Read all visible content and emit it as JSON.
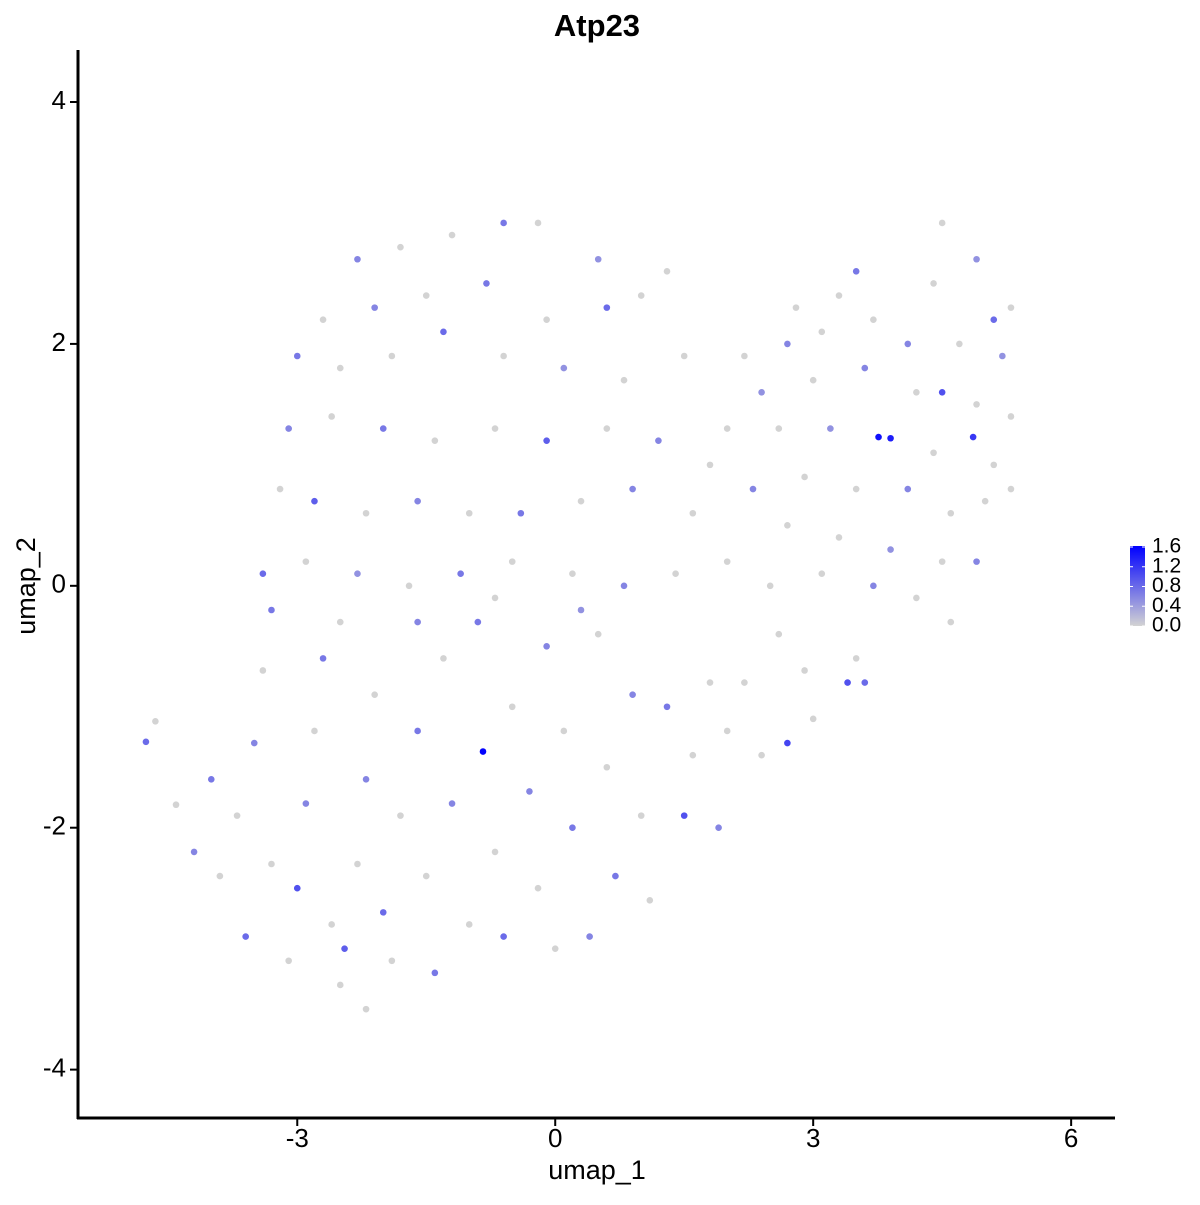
{
  "chart_data": {
    "type": "scatter",
    "title": "Atp23",
    "x_label": "umap_1",
    "y_label": "umap_2",
    "x": [
      -2.3,
      -1.8,
      -1.2,
      -0.6,
      -0.2,
      0.5,
      1.0,
      -2.7,
      -2.1,
      -1.5,
      -0.8,
      -0.1,
      0.6,
      1.3,
      -3.0,
      -2.5,
      -1.9,
      -1.3,
      -0.6,
      0.1,
      0.8,
      1.5,
      -3.1,
      -2.6,
      -2.0,
      -1.4,
      -0.7,
      -0.1,
      0.6,
      1.2,
      1.8,
      -3.2,
      -2.8,
      -2.2,
      -1.6,
      -1.0,
      -0.4,
      0.3,
      0.9,
      1.6,
      -3.4,
      -2.9,
      -2.3,
      -1.7,
      -1.1,
      -0.5,
      0.2,
      0.8,
      1.4,
      2.0,
      4.5,
      4.9,
      4.4,
      3.5,
      3.3,
      5.3,
      5.1,
      2.8,
      2.7,
      3.1,
      3.7,
      4.1,
      4.7,
      5.2,
      2.2,
      2.4,
      3.0,
      3.6,
      4.2,
      4.5,
      4.9,
      5.3,
      2.0,
      2.6,
      3.2,
      3.76,
      3.9,
      4.86,
      4.4,
      5.1,
      2.3,
      2.9,
      3.5,
      4.1,
      4.6,
      5.0,
      2.7,
      3.3,
      3.9,
      4.5,
      4.9,
      5.3,
      2.5,
      3.1,
      3.7,
      4.2,
      4.6,
      3.5,
      2.9,
      3.4,
      3.6,
      3.0,
      2.7,
      2.4,
      2.0,
      2.2,
      2.6,
      -4.76,
      -4.65,
      -4.41,
      -4.2,
      -4.0,
      -3.9,
      -3.6,
      -3.7,
      -3.5,
      -3.4,
      -3.3,
      -3.1,
      -3.0,
      -2.9,
      -2.8,
      -2.7,
      -2.6,
      -2.5,
      -2.45,
      -2.3,
      -2.2,
      -2.1,
      -2.2,
      -2.0,
      -1.9,
      -1.8,
      -1.6,
      -1.5,
      -1.4,
      -1.3,
      -1.2,
      -1.0,
      -0.9,
      -0.84,
      -0.7,
      -0.6,
      -0.5,
      -0.3,
      -0.2,
      -0.1,
      0.0,
      0.1,
      0.2,
      0.4,
      0.5,
      0.6,
      0.7,
      0.9,
      1.0,
      1.1,
      1.3,
      1.5,
      1.6,
      1.8,
      1.9,
      0.3,
      -0.7,
      -1.6,
      -2.5,
      -3.3
    ],
    "values": [
      2.7,
      2.8,
      2.9,
      3.0,
      3.0,
      2.7,
      2.4,
      2.2,
      2.3,
      2.4,
      2.5,
      2.2,
      2.3,
      2.6,
      1.9,
      1.8,
      1.9,
      2.1,
      1.9,
      1.8,
      1.7,
      1.9,
      1.3,
      1.4,
      1.3,
      1.2,
      1.3,
      1.2,
      1.3,
      1.2,
      1.0,
      0.8,
      0.7,
      0.6,
      0.7,
      0.6,
      0.6,
      0.7,
      0.8,
      0.6,
      0.1,
      0.2,
      0.1,
      0.0,
      0.1,
      0.2,
      0.1,
      0.0,
      0.1,
      0.2,
      3.0,
      2.7,
      2.5,
      2.6,
      2.4,
      2.3,
      2.2,
      2.3,
      2.0,
      2.1,
      2.2,
      2.0,
      2.0,
      1.9,
      1.9,
      1.6,
      1.7,
      1.8,
      1.6,
      1.6,
      1.5,
      1.4,
      1.3,
      1.3,
      1.3,
      1.23,
      1.22,
      1.23,
      1.1,
      1.0,
      0.8,
      0.9,
      0.8,
      0.8,
      0.6,
      0.7,
      0.5,
      0.4,
      0.3,
      0.2,
      0.2,
      0.8,
      0.0,
      0.1,
      0.0,
      -0.1,
      -0.3,
      -0.6,
      -0.7,
      -0.8,
      -0.8,
      -1.1,
      -1.3,
      -1.4,
      -1.2,
      -0.8,
      -0.4,
      -1.29,
      -1.12,
      -1.81,
      -2.2,
      -1.6,
      -2.4,
      -2.9,
      -1.9,
      -1.3,
      -0.7,
      -2.3,
      -3.1,
      -2.5,
      -1.8,
      -1.2,
      -0.6,
      -2.8,
      -3.3,
      -3.0,
      -2.3,
      -1.6,
      -0.9,
      -3.5,
      -2.7,
      -3.1,
      -1.9,
      -1.2,
      -2.4,
      -3.2,
      -0.6,
      -1.8,
      -2.8,
      -0.3,
      -1.37,
      -2.2,
      -2.9,
      -1.0,
      -1.7,
      -2.5,
      -0.5,
      -3.0,
      -1.2,
      -2.0,
      -2.9,
      -0.4,
      -1.5,
      -2.4,
      -0.9,
      -1.9,
      -2.6,
      -1.0,
      -1.9,
      -1.4,
      -0.8,
      -2.0,
      -0.2,
      -0.1,
      -0.3,
      -0.3,
      -0.2
    ],
    "expression": [
      0.6,
      0,
      0,
      0.7,
      0,
      0.5,
      0,
      0,
      0.6,
      0,
      0.7,
      0,
      0.8,
      0,
      0.7,
      0,
      0,
      0.8,
      0,
      0.5,
      0,
      0,
      0.6,
      0,
      0.7,
      0,
      0,
      0.9,
      0,
      0.6,
      0,
      0,
      0.9,
      0,
      0.6,
      0,
      0.7,
      0,
      0.6,
      0,
      0.8,
      0,
      0.5,
      0,
      0.7,
      0,
      0,
      0.6,
      0,
      0,
      0,
      0.5,
      0,
      0.7,
      0,
      0,
      0.8,
      0,
      0.6,
      0,
      0,
      0.6,
      0,
      0.5,
      0,
      0.5,
      0,
      0.6,
      0,
      1.0,
      0,
      0,
      0,
      0,
      0.5,
      1.5,
      1.4,
      1.2,
      0,
      0,
      0.6,
      0,
      0,
      0.6,
      0,
      0,
      0,
      0,
      0.5,
      0,
      0.6,
      0,
      0,
      0,
      0.6,
      0,
      0,
      0,
      0,
      1.0,
      0.8,
      0,
      1.1,
      0,
      0,
      0,
      0,
      0.8,
      0,
      0,
      0.6,
      0.7,
      0,
      0.8,
      0,
      0.6,
      0,
      0,
      0,
      1.0,
      0.6,
      0,
      0.7,
      0,
      0,
      0.9,
      0,
      0.6,
      0,
      0,
      0.8,
      0,
      0,
      0.7,
      0,
      0.7,
      0,
      0.6,
      0,
      0.7,
      1.6,
      0,
      0.8,
      0,
      0.6,
      0,
      0.6,
      0,
      0,
      0.7,
      0.6,
      0,
      0,
      0.7,
      0.6,
      0,
      0,
      0.7,
      1.0,
      0,
      0,
      0.6,
      0.5,
      0,
      0.6,
      0,
      0.7
    ],
    "xlim": [
      -5.55,
      6.51
    ],
    "ylim": [
      -4.4,
      4.43
    ],
    "xticks": [
      -3,
      0,
      3,
      6
    ],
    "yticks": [
      -4,
      -2,
      0,
      2,
      4
    ],
    "colorbar": {
      "low_color": "#d3d3d3",
      "high_color": "#0000ff",
      "lim": [
        0,
        1.62
      ],
      "ticks": [
        {
          "value": 0,
          "label": "0.0"
        },
        {
          "value": 0.4,
          "label": "0.4"
        },
        {
          "value": 0.8,
          "label": "0.8"
        },
        {
          "value": 1.2,
          "label": "1.2"
        },
        {
          "value": 1.6,
          "label": "1.6"
        }
      ]
    }
  }
}
